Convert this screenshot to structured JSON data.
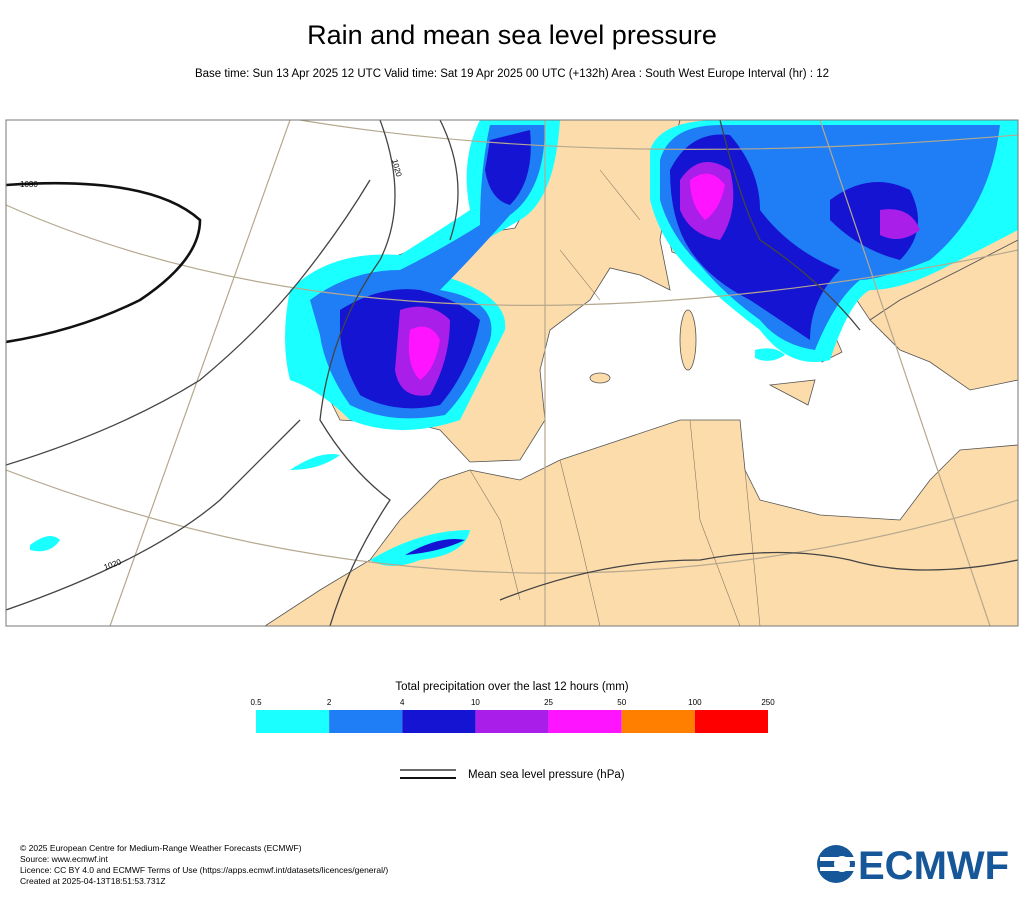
{
  "header": {
    "title": "Rain and mean sea level pressure",
    "subtitle": "Base time: Sun 13 Apr 2025 12 UTC Valid time: Sat 19 Apr 2025 00 UTC (+132h) Area : South West Europe Interval (hr) : 12"
  },
  "map": {
    "isobar_labels": [
      "1030",
      "1020",
      "1020"
    ]
  },
  "legend": {
    "title": "Total precipitation over the last 12 hours (mm)",
    "bounds": [
      0.5,
      2,
      4,
      10,
      25,
      50,
      100,
      250
    ],
    "colors": [
      "#1affff",
      "#1f7df5",
      "#1414d2",
      "#a91ee8",
      "#ff14ff",
      "#ff8000",
      "#ff0000"
    ],
    "line_label": "Mean sea level pressure (hPa)"
  },
  "footer": {
    "lines": [
      "© 2025 European Centre for Medium-Range Weather Forecasts (ECMWF)",
      "Source: www.ecmwf.int",
      "Licence: CC BY 4.0 and ECMWF Terms of Use (https://apps.ecmwf.int/datasets/licences/general/)",
      "Created at 2025-04-13T18:51:53.731Z"
    ],
    "logo": "ECMWF"
  }
}
